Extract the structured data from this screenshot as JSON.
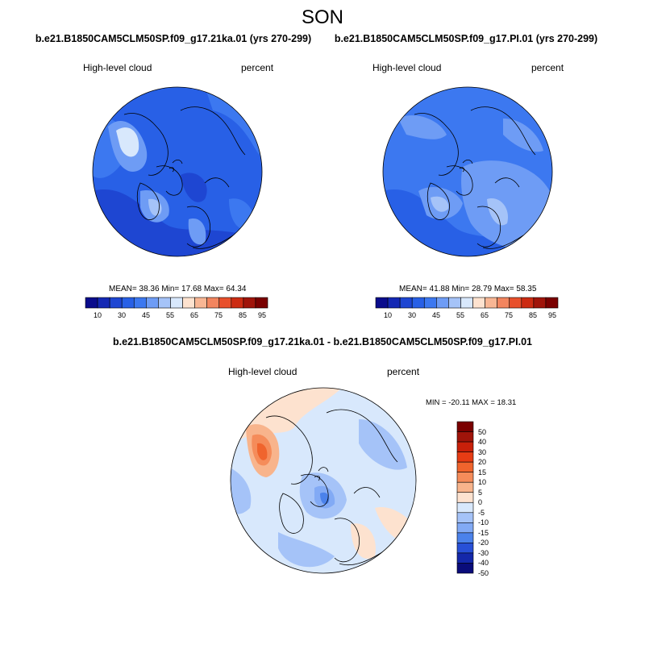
{
  "figure_title": "SON",
  "panels": [
    {
      "title": "b.e21.B1850CAM5CLM50SP.f09_g17.21ka.01 (yrs 270-299)",
      "variable": "High-level cloud",
      "units": "percent",
      "stats": "MEAN=  38.36  Min=  17.68  Max=  64.34",
      "colorbar_ticks": [
        "10",
        "30",
        "45",
        "55",
        "65",
        "75",
        "85",
        "95"
      ]
    },
    {
      "title": "b.e21.B1850CAM5CLM50SP.f09_g17.PI.01 (yrs 270-299)",
      "variable": "High-level cloud",
      "units": "percent",
      "stats": "MEAN=  41.88  Min=  28.79  Max=  58.35",
      "colorbar_ticks": [
        "10",
        "30",
        "45",
        "55",
        "65",
        "75",
        "85",
        "95"
      ]
    }
  ],
  "diff_panel": {
    "title": "b.e21.B1850CAM5CLM50SP.f09_g17.21ka.01 - b.e21.B1850CAM5CLM50SP.f09_g17.PI.01",
    "variable": "High-level cloud",
    "units": "percent",
    "stats": "MIN = -20.11 MAX =  18.31",
    "colorbar_ticks": [
      "50",
      "40",
      "30",
      "20",
      "15",
      "10",
      "5",
      "0",
      "-5",
      "-10",
      "-15",
      "-20",
      "-30",
      "-40",
      "-50"
    ]
  },
  "colors": {
    "abs_scale": [
      "#0a0c8c",
      "#1428b4",
      "#1e46d2",
      "#2860e6",
      "#3c78f0",
      "#6e9cf5",
      "#a5c3f8",
      "#d8e8fc",
      "#fde2cf",
      "#f8b694",
      "#f2855f",
      "#e8502c",
      "#cc2b12",
      "#a0140a",
      "#7a0000"
    ],
    "diff_scale": [
      "#7a0000",
      "#a0140a",
      "#c8200a",
      "#e63c14",
      "#f0642d",
      "#f58c5a",
      "#f8b48c",
      "#fde2cf",
      "#d8e8fc",
      "#a5c3f8",
      "#82aaf5",
      "#4b82eb",
      "#2850d7",
      "#1428aa",
      "#0a0c7a"
    ]
  }
}
